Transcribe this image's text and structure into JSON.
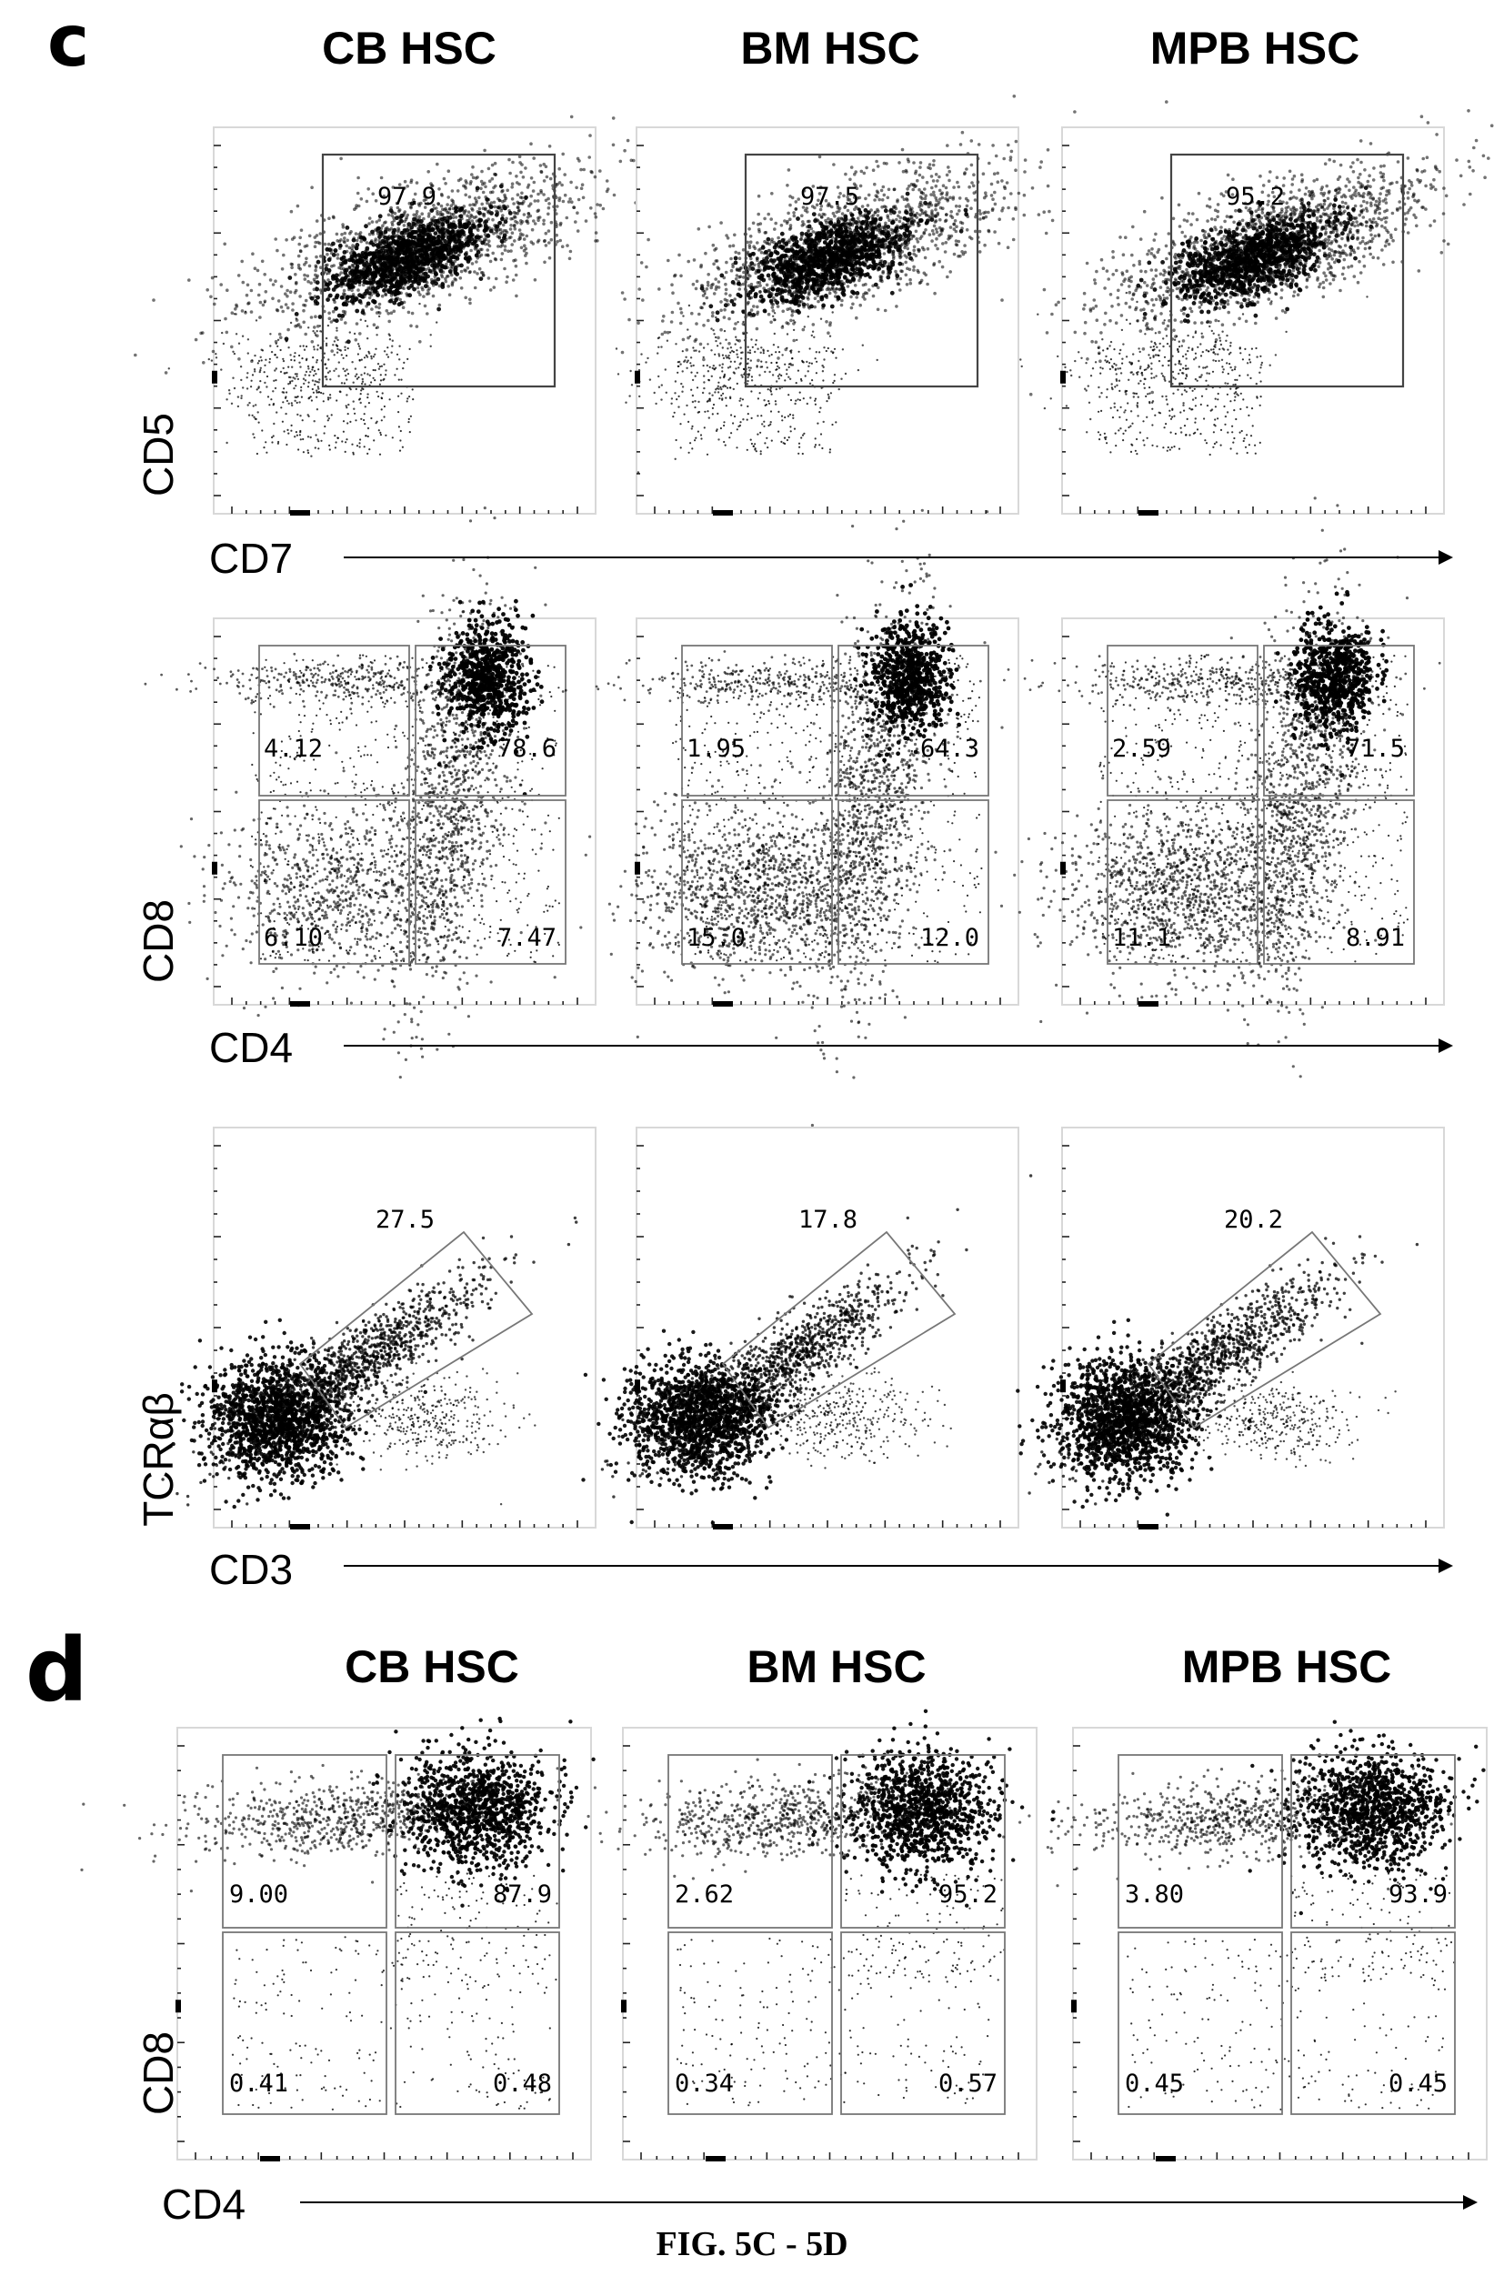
{
  "figure_caption": "FIG. 5C - 5D",
  "colors": {
    "dots": "#000000",
    "gate": "#444444",
    "background": "#ffffff"
  },
  "chart_data": [
    {
      "type": "scatter",
      "panel": "c",
      "row": 1,
      "xlabel": "CD7",
      "ylabel": "CD5",
      "plots": [
        {
          "column_title": "CB HSC",
          "gates": [
            {
              "label": "97.9"
            }
          ]
        },
        {
          "column_title": "BM HSC",
          "gates": [
            {
              "label": "97.5"
            }
          ]
        },
        {
          "column_title": "MPB HSC",
          "gates": [
            {
              "label": "95.2"
            }
          ]
        }
      ]
    },
    {
      "type": "scatter",
      "panel": "c",
      "row": 2,
      "xlabel": "CD4",
      "ylabel": "CD8",
      "plots": [
        {
          "gates": [
            {
              "label": "4.12"
            },
            {
              "label": "78.6"
            },
            {
              "label": "6.10"
            },
            {
              "label": "7.47"
            }
          ]
        },
        {
          "gates": [
            {
              "label": "1.95"
            },
            {
              "label": "64.3"
            },
            {
              "label": "15.0"
            },
            {
              "label": "12.0"
            }
          ]
        },
        {
          "gates": [
            {
              "label": "2.59"
            },
            {
              "label": "71.5"
            },
            {
              "label": "11.1"
            },
            {
              "label": "8.91"
            }
          ]
        }
      ]
    },
    {
      "type": "scatter",
      "panel": "c",
      "row": 3,
      "xlabel": "CD3",
      "ylabel": "TCRαβ",
      "plots": [
        {
          "gates": [
            {
              "label": "27.5"
            }
          ]
        },
        {
          "gates": [
            {
              "label": "17.8"
            }
          ]
        },
        {
          "gates": [
            {
              "label": "20.2"
            }
          ]
        }
      ]
    },
    {
      "type": "scatter",
      "panel": "d",
      "row": 1,
      "xlabel": "CD4",
      "ylabel": "CD8",
      "plots": [
        {
          "column_title": "CB HSC",
          "gates": [
            {
              "label": "9.00"
            },
            {
              "label": "87.9"
            },
            {
              "label": "0.41"
            },
            {
              "label": "0.48"
            }
          ]
        },
        {
          "column_title": "BM HSC",
          "gates": [
            {
              "label": "2.62"
            },
            {
              "label": "95.2"
            },
            {
              "label": "0.34"
            },
            {
              "label": "0.57"
            }
          ]
        },
        {
          "column_title": "MPB HSC",
          "gates": [
            {
              "label": "3.80"
            },
            {
              "label": "93.9"
            },
            {
              "label": "0.45"
            },
            {
              "label": "0.45"
            }
          ]
        }
      ]
    }
  ]
}
